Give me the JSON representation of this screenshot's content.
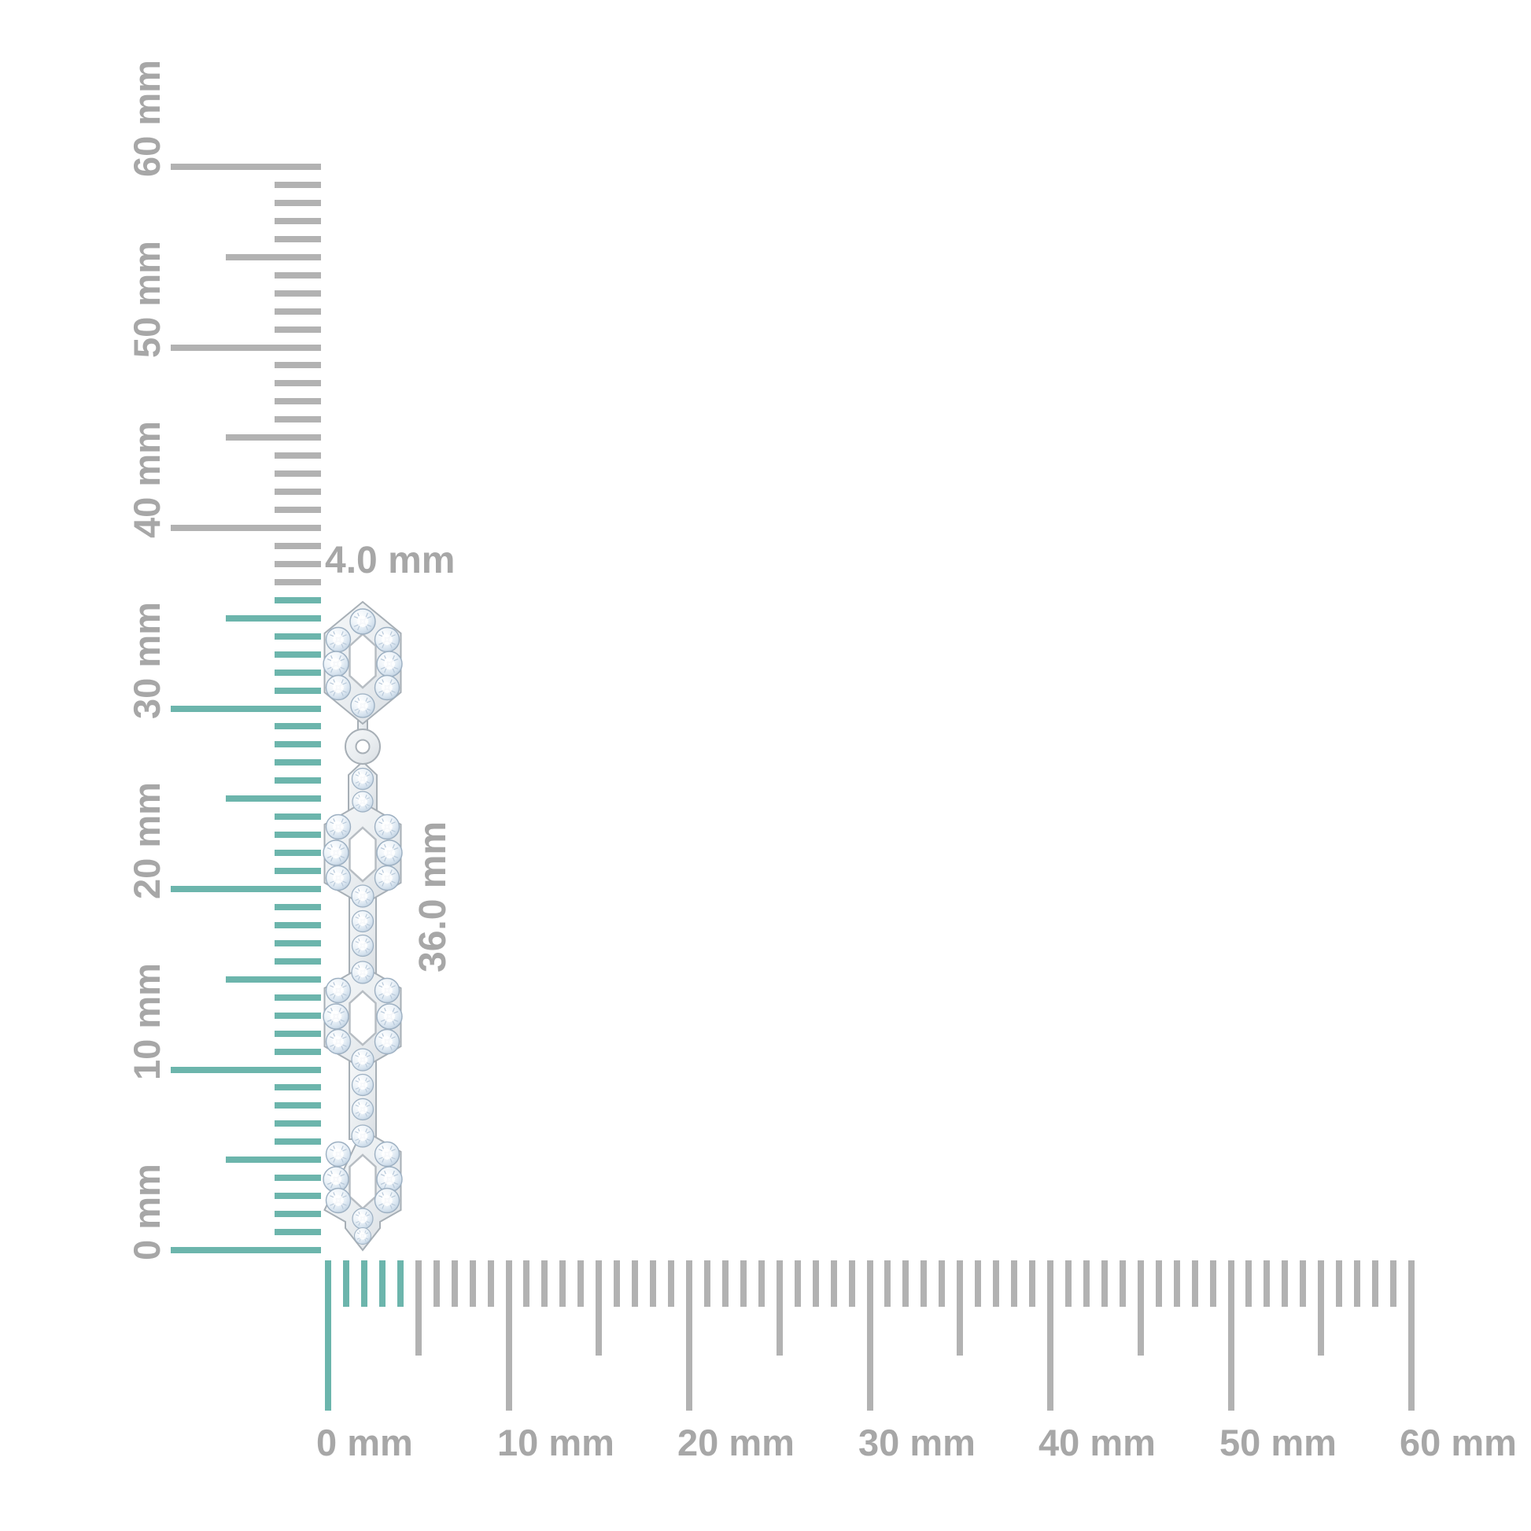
{
  "diagram": {
    "unit": "mm",
    "background_color": "#ffffff"
  },
  "dimension_labels": {
    "width_label": "4.0 mm",
    "height_label": "36.0 mm"
  },
  "vertical_ruler": {
    "min_mm": 0,
    "max_mm": 60,
    "major_step_mm": 10,
    "medium_step_mm": 5,
    "minor_step_mm": 1,
    "highlighted_span_mm": 36,
    "tick_labels": [
      "0 mm",
      "10 mm",
      "20 mm",
      "30 mm",
      "40 mm",
      "50 mm",
      "60 mm"
    ]
  },
  "horizontal_ruler": {
    "min_mm": 0,
    "max_mm": 60,
    "major_step_mm": 10,
    "medium_step_mm": 5,
    "minor_step_mm": 1,
    "highlighted_span_mm": 4,
    "tick_labels": [
      "0 mm",
      "10 mm",
      "20 mm",
      "30 mm",
      "40 mm",
      "50 mm",
      "60 mm"
    ]
  },
  "earring": {
    "kind": "diamond pave hexagon-link drop earring",
    "width_mm": 4.0,
    "height_mm": 36.0,
    "hexagon_links": 4,
    "connector_bars": 3,
    "has_jump_ring": true
  },
  "colors": {
    "highlight_teal": "#6cb5ac",
    "tick_gray": "#b2b2b2",
    "label_gray": "#a7a7a7",
    "metal_light": "#eceff1",
    "metal_edge": "#a7afb6",
    "hole_edge": "#b7bdc3",
    "diamond_edge": "#9db0c2",
    "diamond_tint": "#d5e2ee"
  }
}
